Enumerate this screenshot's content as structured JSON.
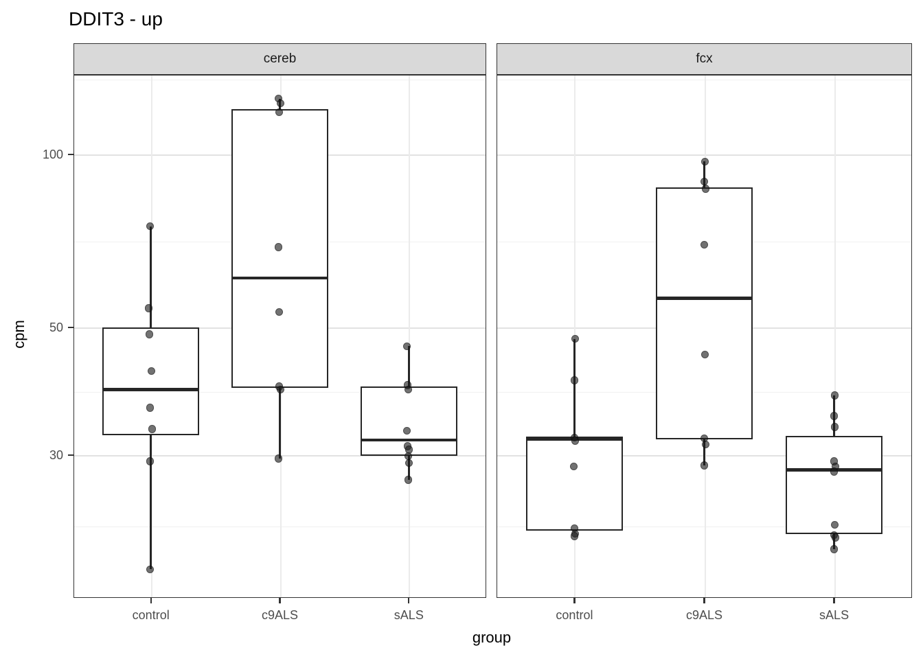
{
  "chart_data": {
    "type": "boxplot",
    "title": "DDIT3 - up",
    "xlabel": "group",
    "ylabel": "cpm",
    "y_scale": "log10",
    "ylim": [
      16.95,
      137.5
    ],
    "y_ticks": [
      100,
      50,
      30
    ],
    "y_minor_gridlines": [
      135,
      70.7,
      38.7,
      22.6
    ],
    "categories": [
      "control",
      "c9ALS",
      "sALS"
    ],
    "legend": "none",
    "panel_bg": "#ffffff",
    "colors": {
      "strip_bg": "#d9d9d9",
      "panel_border": "#333333",
      "box_border": "#262626",
      "point": "rgba(28,28,28,0.62)",
      "grid_major": "#e2e2e2",
      "grid_minor": "#f0f0f0",
      "tick_text": "#4d4d4d",
      "title_text": "#000000"
    },
    "facets": [
      {
        "label": "cereb",
        "groups": [
          {
            "name": "control",
            "whisker_low": 19,
            "q1": 32.5,
            "median": 39,
            "q3": 50,
            "whisker_high": 75,
            "points": [
              [
                75,
                -1
              ],
              [
                54,
                -3
              ],
              [
                48.7,
                -2
              ],
              [
                42,
                1
              ],
              [
                36.3,
                -1
              ],
              [
                33.3,
                2
              ],
              [
                29.3,
                -1
              ],
              [
                19,
                -1
              ]
            ]
          },
          {
            "name": "c9ALS",
            "whisker_low": 29.6,
            "q1": 39.3,
            "median": 61,
            "q3": 120,
            "whisker_high": 125,
            "points": [
              [
                125,
                -2
              ],
              [
                122.7,
                1
              ],
              [
                118.4,
                -1
              ],
              [
                69,
                -2
              ],
              [
                53.2,
                -1
              ],
              [
                39.5,
                -1
              ],
              [
                39.0,
                1
              ],
              [
                29.6,
                -2
              ]
            ]
          },
          {
            "name": "sALS",
            "whisker_low": 27.2,
            "q1": 29.9,
            "median": 31.9,
            "q3": 39.5,
            "whisker_high": 46.4,
            "points": [
              [
                46.4,
                -3
              ],
              [
                39.7,
                -2
              ],
              [
                39.0,
                -1
              ],
              [
                33.1,
                -3
              ],
              [
                31.1,
                -2
              ],
              [
                30.7,
                0
              ],
              [
                29.9,
                -1
              ],
              [
                29.1,
                0
              ],
              [
                27.2,
                -1
              ]
            ]
          }
        ]
      },
      {
        "label": "fcx",
        "groups": [
          {
            "name": "control",
            "whisker_low": 22.2,
            "q1": 22.2,
            "median": 32.0,
            "q3": 32.3,
            "whisker_high": 47.8,
            "points": [
              [
                47.8,
                1
              ],
              [
                40.5,
                0
              ],
              [
                32.2,
                0
              ],
              [
                31.8,
                1
              ],
              [
                28.7,
                -1
              ],
              [
                22.4,
                0
              ],
              [
                21.9,
                1
              ],
              [
                21.7,
                0
              ]
            ]
          },
          {
            "name": "c9ALS",
            "whisker_low": 28.8,
            "q1": 32.0,
            "median": 56.2,
            "q3": 87.7,
            "whisker_high": 97.2,
            "points": [
              [
                97.2,
                1
              ],
              [
                89.7,
                0
              ],
              [
                87.1,
                2
              ],
              [
                69.7,
                0
              ],
              [
                44.9,
                1
              ],
              [
                32.1,
                0
              ],
              [
                31.3,
                2
              ],
              [
                28.8,
                0
              ]
            ]
          },
          {
            "name": "sALS",
            "whisker_low": 20.6,
            "q1": 21.9,
            "median": 28.3,
            "q3": 32.4,
            "whisker_high": 38.1,
            "points": [
              [
                38.1,
                1
              ],
              [
                35.1,
                0
              ],
              [
                33.6,
                1
              ],
              [
                29.3,
                0
              ],
              [
                28.7,
                2
              ],
              [
                28.1,
                0
              ],
              [
                22.7,
                1
              ],
              [
                21.8,
                0
              ],
              [
                21.6,
                2
              ],
              [
                20.6,
                0
              ]
            ]
          }
        ]
      }
    ]
  }
}
